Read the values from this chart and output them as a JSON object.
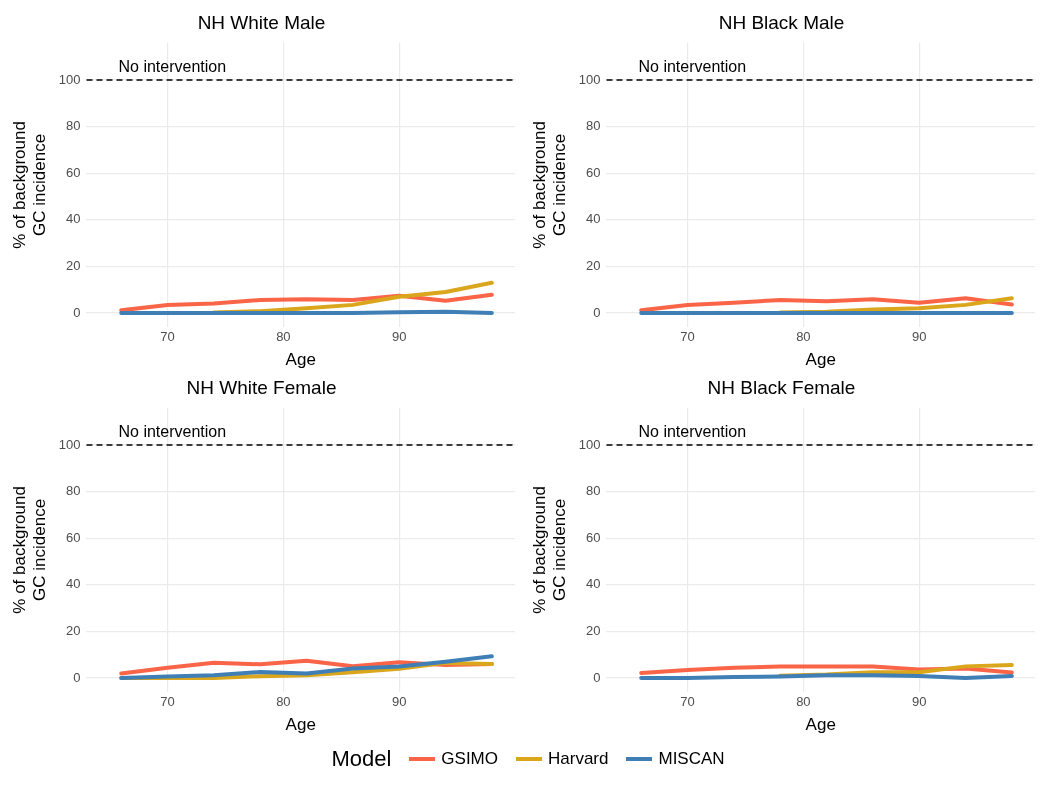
{
  "chart_data": [
    {
      "type": "line",
      "title": "NH White Male",
      "xlabel": "Age",
      "ylabel": "% of background GC incidence",
      "x": [
        66,
        70,
        74,
        78,
        82,
        86,
        90,
        94,
        98
      ],
      "xlim": [
        63,
        100
      ],
      "xticks": [
        70,
        80,
        90
      ],
      "ylim": [
        -6,
        116
      ],
      "yticks": [
        0,
        20,
        40,
        60,
        80,
        100
      ],
      "grid": true,
      "legend": "bottom",
      "legend_title": "Model",
      "ref_lines": [
        {
          "axis": "y",
          "value": 100,
          "label": "No intervention",
          "color": "#000000",
          "line_style": "dashed"
        }
      ],
      "series": [
        {
          "name": "GSIMO",
          "color": "#fa6548",
          "values": [
            1.2,
            3.4,
            4.1,
            5.6,
            5.9,
            5.6,
            7.4,
            5.3,
            7.8
          ]
        },
        {
          "name": "Harvard",
          "color": "#d9a61c",
          "values": [
            null,
            null,
            0.2,
            0.8,
            2,
            3.5,
            7,
            9,
            13
          ]
        },
        {
          "name": "MISCAN",
          "color": "#3f7fb5",
          "values": [
            0,
            0,
            0,
            0,
            0,
            0,
            0.3,
            0.5,
            0
          ]
        }
      ]
    },
    {
      "type": "line",
      "title": "NH Black Male",
      "xlabel": "Age",
      "ylabel": "% of background GC incidence",
      "x": [
        66,
        70,
        74,
        78,
        82,
        86,
        90,
        94,
        98
      ],
      "xlim": [
        63,
        100
      ],
      "xticks": [
        70,
        80,
        90
      ],
      "ylim": [
        -6,
        116
      ],
      "yticks": [
        0,
        20,
        40,
        60,
        80,
        100
      ],
      "grid": true,
      "ref_lines": [
        {
          "axis": "y",
          "value": 100,
          "label": "No intervention",
          "color": "#000000",
          "line_style": "dashed"
        }
      ],
      "series": [
        {
          "color": "#fa6548",
          "values": [
            1.2,
            3.4,
            4.4,
            5.6,
            5.1,
            5.9,
            4.4,
            6.3,
            3.7
          ]
        },
        {
          "color": "#d9a61c",
          "values": [
            null,
            null,
            null,
            0.2,
            0.5,
            1.5,
            2,
            3.5,
            6.3
          ]
        },
        {
          "color": "#3f7fb5",
          "values": [
            0,
            0,
            0,
            0,
            0,
            0,
            0,
            0,
            0
          ]
        }
      ]
    },
    {
      "type": "line",
      "title": "NH White Female",
      "xlabel": "Age",
      "ylabel": "% of background GC incidence",
      "x": [
        66,
        70,
        74,
        78,
        82,
        86,
        90,
        94,
        98
      ],
      "xlim": [
        63,
        100
      ],
      "xticks": [
        70,
        80,
        90
      ],
      "ylim": [
        -6,
        116
      ],
      "yticks": [
        0,
        20,
        40,
        60,
        80,
        100
      ],
      "grid": true,
      "ref_lines": [
        {
          "axis": "y",
          "value": 100,
          "label": "No intervention",
          "color": "#000000",
          "line_style": "dashed"
        }
      ],
      "series": [
        {
          "color": "#fa6548",
          "values": [
            1.9,
            4.4,
            6.6,
            5.9,
            7.4,
            5.1,
            6.8,
            5.6,
            6
          ]
        },
        {
          "color": "#d9a61c",
          "values": [
            0,
            0,
            0,
            0.8,
            1.2,
            2.5,
            4,
            6.5,
            6
          ]
        },
        {
          "color": "#3f7fb5",
          "values": [
            0,
            0.7,
            1.2,
            2.6,
            1.9,
            4.1,
            4.9,
            7,
            9.3
          ]
        }
      ]
    },
    {
      "type": "line",
      "title": "NH Black Female",
      "xlabel": "Age",
      "ylabel": "% of background GC incidence",
      "x": [
        66,
        70,
        74,
        78,
        82,
        86,
        90,
        94,
        98
      ],
      "xlim": [
        63,
        100
      ],
      "xticks": [
        70,
        80,
        90
      ],
      "ylim": [
        -6,
        116
      ],
      "yticks": [
        0,
        20,
        40,
        60,
        80,
        100
      ],
      "grid": true,
      "ref_lines": [
        {
          "axis": "y",
          "value": 100,
          "label": "No intervention",
          "color": "#000000",
          "line_style": "dashed"
        }
      ],
      "series": [
        {
          "color": "#fa6548",
          "values": [
            2.2,
            3.4,
            4.4,
            4.9,
            4.9,
            4.9,
            3.7,
            4.1,
            2.4
          ]
        },
        {
          "color": "#d9a61c",
          "values": [
            null,
            null,
            null,
            1,
            1.5,
            2.5,
            2.5,
            5,
            5.6
          ]
        },
        {
          "color": "#3f7fb5",
          "values": [
            0,
            0,
            0.4,
            0.7,
            1.2,
            1.2,
            0.9,
            0,
            0.9
          ]
        }
      ]
    }
  ]
}
